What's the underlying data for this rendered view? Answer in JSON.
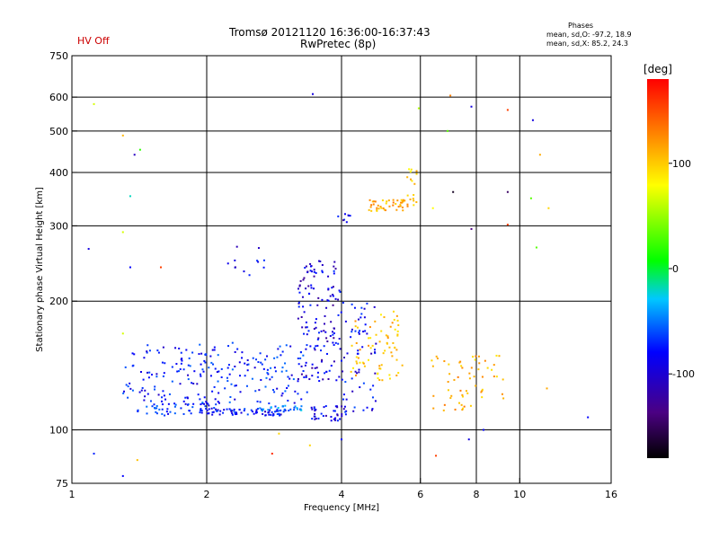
{
  "header": {
    "title_line1": "Tromsø 20121120 16:36:00-16:37:43",
    "title_line2": "RwPretec (8p)",
    "status": "HV Off",
    "phases_heading": "Phases",
    "phases_o": "mean, sd,O: -97.2, 18.9",
    "phases_x": "mean, sd,X:  85.2, 24.3"
  },
  "colorbar": {
    "label": "[deg]",
    "ticks": [
      {
        "value": 100,
        "label": "100"
      },
      {
        "value": 0,
        "label": "0"
      },
      {
        "value": -100,
        "label": "-100"
      }
    ],
    "range": [
      -180,
      180
    ]
  },
  "chart_data": {
    "type": "scatter",
    "title": "Tromsø 20121120 16:36:00-16:37:43",
    "subtitle": "RwPretec (8p)",
    "xlabel": "Frequency [MHz]",
    "ylabel": "Stationary phase Virtual Height [km]",
    "x_scale": "log",
    "y_scale": "log",
    "xlim": [
      1,
      16
    ],
    "ylim": [
      75,
      750
    ],
    "x_ticks": [
      1,
      2,
      4,
      6,
      8,
      10,
      16
    ],
    "y_ticks": [
      75,
      100,
      200,
      300,
      400,
      500,
      600,
      750
    ],
    "grid_x": [
      2,
      4,
      6,
      8,
      10
    ],
    "grid_y": [
      100,
      200,
      300,
      400,
      500,
      600
    ],
    "color_by": "phase [deg]",
    "clusters": [
      {
        "x": [
          1.4,
          2.1
        ],
        "y": [
          108,
          118
        ],
        "phase": -90,
        "n": 60
      },
      {
        "x": [
          1.3,
          2.0
        ],
        "y": [
          118,
          160
        ],
        "phase": -95,
        "n": 90
      },
      {
        "x": [
          2.0,
          3.0
        ],
        "y": [
          108,
          112
        ],
        "phase": -100,
        "n": 70
      },
      {
        "x": [
          2.0,
          3.4
        ],
        "y": [
          115,
          160
        ],
        "phase": -90,
        "n": 120
      },
      {
        "x": [
          2.6,
          3.3
        ],
        "y": [
          110,
          114
        ],
        "phase": -60,
        "n": 30
      },
      {
        "x": [
          3.2,
          4.0
        ],
        "y": [
          130,
          250
        ],
        "phase": -110,
        "n": 140
      },
      {
        "x": [
          3.4,
          4.1
        ],
        "y": [
          105,
          114
        ],
        "phase": -105,
        "n": 40
      },
      {
        "x": [
          4.0,
          4.8
        ],
        "y": [
          110,
          200
        ],
        "phase": -100,
        "n": 60
      },
      {
        "x": [
          4.2,
          5.5
        ],
        "y": [
          130,
          190
        ],
        "phase": 90,
        "n": 70
      },
      {
        "x": [
          4.6,
          5.8
        ],
        "y": [
          325,
          345
        ],
        "phase": 100,
        "n": 45
      },
      {
        "x": [
          5.6,
          5.9
        ],
        "y": [
          340,
          410
        ],
        "phase": 80,
        "n": 15
      },
      {
        "x": [
          6.3,
          7.8
        ],
        "y": [
          110,
          150
        ],
        "phase": 100,
        "n": 35
      },
      {
        "x": [
          7.8,
          9.2
        ],
        "y": [
          115,
          150
        ],
        "phase": 95,
        "n": 25
      },
      {
        "x": [
          2.2,
          2.7
        ],
        "y": [
          230,
          270
        ],
        "phase": -110,
        "n": 12
      },
      {
        "x": [
          3.8,
          4.2
        ],
        "y": [
          300,
          320
        ],
        "phase": -105,
        "n": 8
      }
    ],
    "isolated_points": [
      {
        "x": 1.12,
        "y": 578,
        "phase": 50
      },
      {
        "x": 1.3,
        "y": 488,
        "phase": 95
      },
      {
        "x": 1.38,
        "y": 440,
        "phase": -120
      },
      {
        "x": 1.42,
        "y": 452,
        "phase": 10
      },
      {
        "x": 1.35,
        "y": 352,
        "phase": -30
      },
      {
        "x": 1.09,
        "y": 265,
        "phase": -110
      },
      {
        "x": 1.35,
        "y": 240,
        "phase": -100
      },
      {
        "x": 1.58,
        "y": 240,
        "phase": 150
      },
      {
        "x": 1.3,
        "y": 290,
        "phase": 50
      },
      {
        "x": 1.3,
        "y": 168,
        "phase": 50
      },
      {
        "x": 1.12,
        "y": 88,
        "phase": -90
      },
      {
        "x": 1.3,
        "y": 78,
        "phase": -100
      },
      {
        "x": 1.4,
        "y": 85,
        "phase": 90
      },
      {
        "x": 3.45,
        "y": 610,
        "phase": -110
      },
      {
        "x": 5.95,
        "y": 565,
        "phase": 40
      },
      {
        "x": 7.0,
        "y": 605,
        "phase": 120
      },
      {
        "x": 7.8,
        "y": 570,
        "phase": -110
      },
      {
        "x": 9.4,
        "y": 560,
        "phase": 150
      },
      {
        "x": 10.7,
        "y": 530,
        "phase": -110
      },
      {
        "x": 6.9,
        "y": 500,
        "phase": 20
      },
      {
        "x": 11.1,
        "y": 440,
        "phase": 100
      },
      {
        "x": 9.4,
        "y": 360,
        "phase": -150
      },
      {
        "x": 7.1,
        "y": 360,
        "phase": -170
      },
      {
        "x": 10.6,
        "y": 348,
        "phase": 20
      },
      {
        "x": 11.6,
        "y": 330,
        "phase": 80
      },
      {
        "x": 9.4,
        "y": 302,
        "phase": 150
      },
      {
        "x": 7.8,
        "y": 295,
        "phase": -140
      },
      {
        "x": 10.9,
        "y": 267,
        "phase": 20
      },
      {
        "x": 6.4,
        "y": 330,
        "phase": 60
      },
      {
        "x": 14.2,
        "y": 107,
        "phase": -100
      },
      {
        "x": 11.5,
        "y": 125,
        "phase": 100
      },
      {
        "x": 8.3,
        "y": 100,
        "phase": -100
      },
      {
        "x": 7.7,
        "y": 95,
        "phase": -110
      },
      {
        "x": 6.5,
        "y": 87,
        "phase": 150
      },
      {
        "x": 2.8,
        "y": 88,
        "phase": 160
      },
      {
        "x": 3.4,
        "y": 92,
        "phase": 80
      },
      {
        "x": 4.0,
        "y": 95,
        "phase": -100
      },
      {
        "x": 2.9,
        "y": 98,
        "phase": 80
      }
    ]
  }
}
